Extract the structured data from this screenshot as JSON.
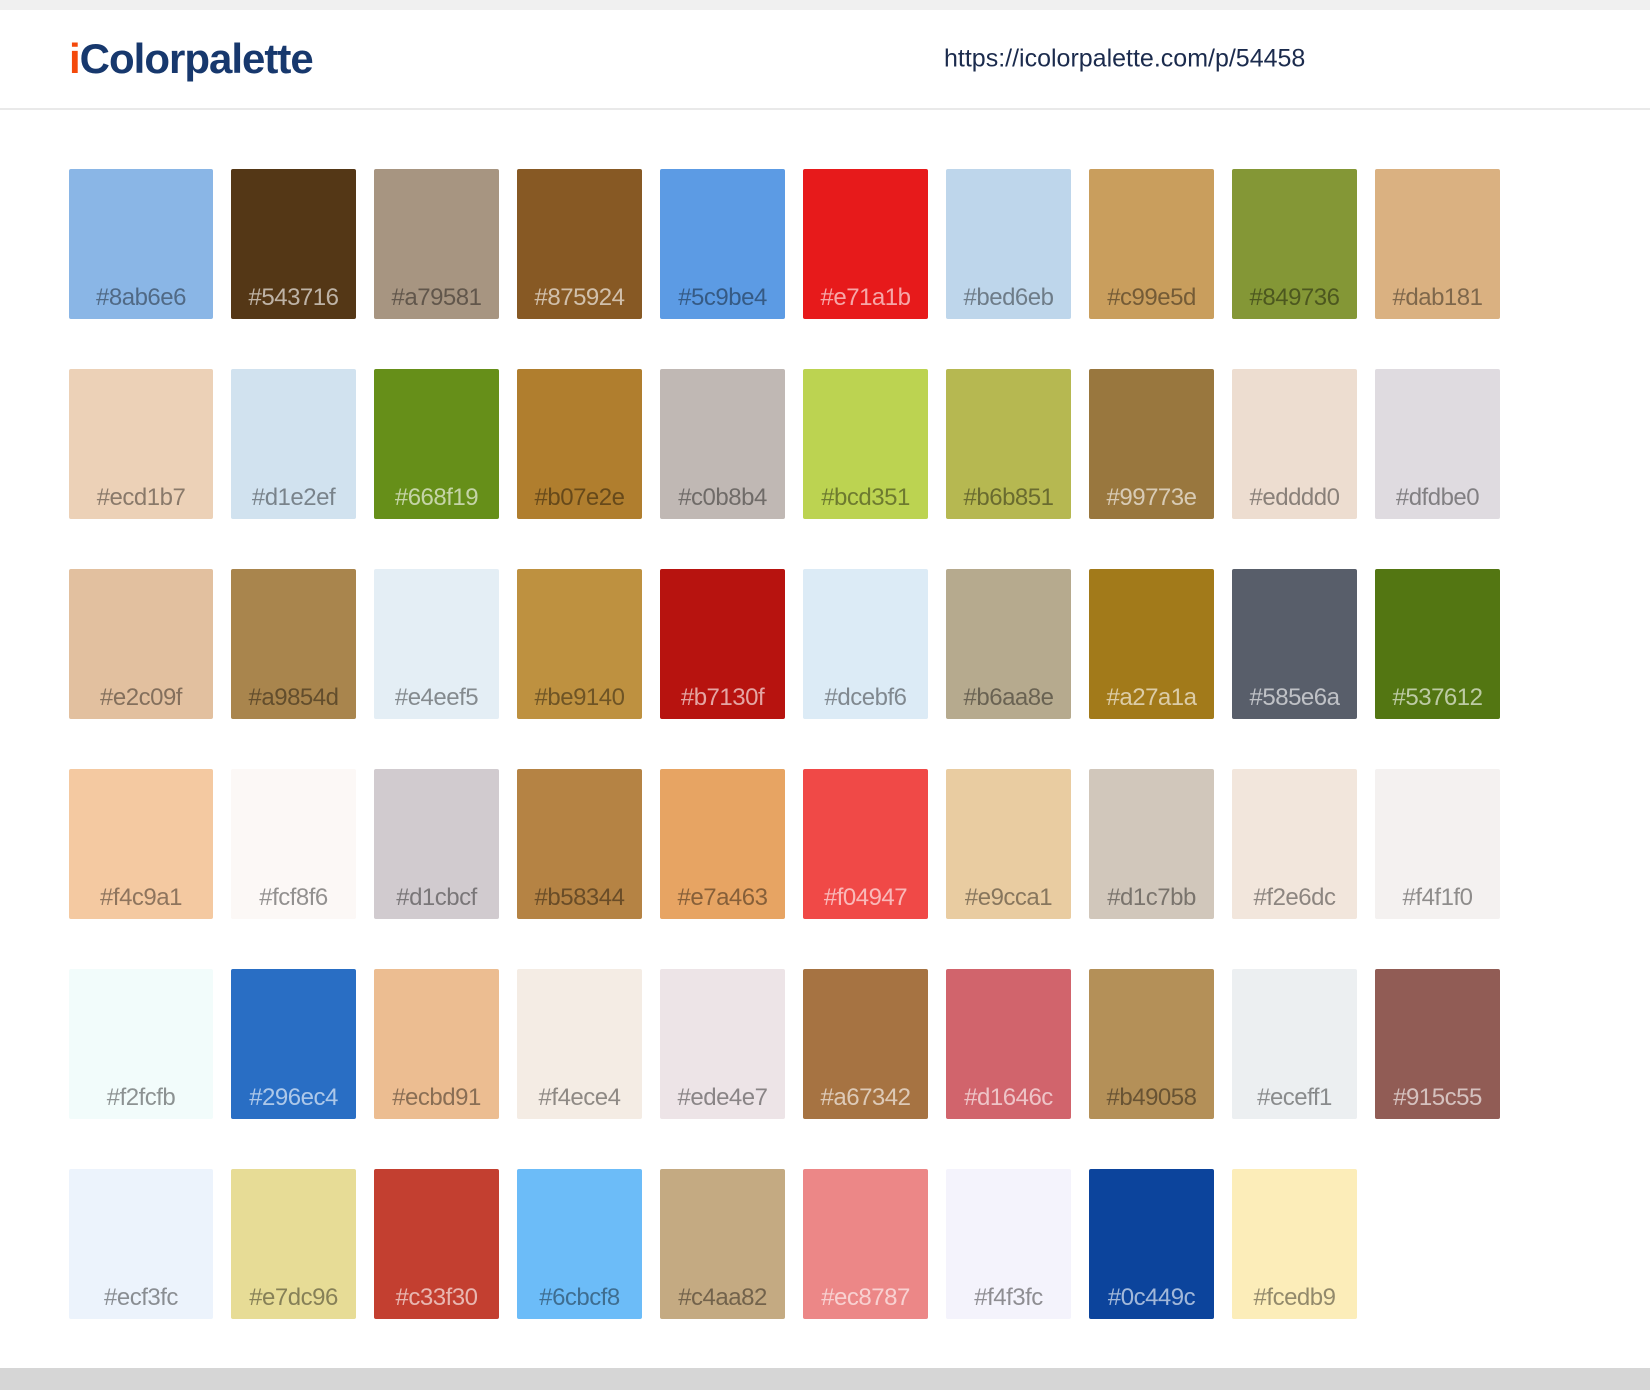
{
  "header": {
    "logo_prefix": "i",
    "logo_rest": "Colorpalette",
    "url": "https://icolorpalette.com/p/54458"
  },
  "colors": {
    "logo_accent": "#f4490b",
    "logo_main": "#17386d",
    "url_text": "#1b2b4d",
    "top_strip": "#f0f0f0",
    "header_border": "#e9e9e9",
    "footer_bar": "#d6d6d6",
    "label_dark": "rgba(0,0,0,0.42)",
    "label_light": "rgba(255,255,255,0.62)"
  },
  "palette": {
    "rows": [
      [
        {
          "hex": "#8ab6e6",
          "text": "dark"
        },
        {
          "hex": "#543716",
          "text": "light"
        },
        {
          "hex": "#a79581",
          "text": "dark"
        },
        {
          "hex": "#875924",
          "text": "light"
        },
        {
          "hex": "#5c9be4",
          "text": "dark"
        },
        {
          "hex": "#e71a1b",
          "text": "light"
        },
        {
          "hex": "#bed6eb",
          "text": "dark"
        },
        {
          "hex": "#c99e5d",
          "text": "dark"
        },
        {
          "hex": "#849736",
          "text": "dark"
        },
        {
          "hex": "#dab181",
          "text": "dark"
        }
      ],
      [
        {
          "hex": "#ecd1b7",
          "text": "dark"
        },
        {
          "hex": "#d1e2ef",
          "text": "dark"
        },
        {
          "hex": "#668f19",
          "text": "light"
        },
        {
          "hex": "#b07e2e",
          "text": "dark"
        },
        {
          "hex": "#c0b8b4",
          "text": "dark"
        },
        {
          "hex": "#bcd351",
          "text": "dark"
        },
        {
          "hex": "#b6b851",
          "text": "dark"
        },
        {
          "hex": "#99773e",
          "text": "light"
        },
        {
          "hex": "#edddd0",
          "text": "dark"
        },
        {
          "hex": "#dfdbe0",
          "text": "dark"
        }
      ],
      [
        {
          "hex": "#e2c09f",
          "text": "dark"
        },
        {
          "hex": "#a9854d",
          "text": "dark"
        },
        {
          "hex": "#e4eef5",
          "text": "dark"
        },
        {
          "hex": "#be9140",
          "text": "dark"
        },
        {
          "hex": "#b7130f",
          "text": "light"
        },
        {
          "hex": "#dcebf6",
          "text": "dark"
        },
        {
          "hex": "#b6aa8e",
          "text": "dark"
        },
        {
          "hex": "#a27a1a",
          "text": "light"
        },
        {
          "hex": "#585e6a",
          "text": "light"
        },
        {
          "hex": "#537612",
          "text": "light"
        }
      ],
      [
        {
          "hex": "#f4c9a1",
          "text": "dark"
        },
        {
          "hex": "#fcf8f6",
          "text": "dark"
        },
        {
          "hex": "#d1cbcf",
          "text": "dark"
        },
        {
          "hex": "#b58344",
          "text": "dark"
        },
        {
          "hex": "#e7a463",
          "text": "dark"
        },
        {
          "hex": "#f04947",
          "text": "light"
        },
        {
          "hex": "#e9cca1",
          "text": "dark"
        },
        {
          "hex": "#d1c7bb",
          "text": "dark"
        },
        {
          "hex": "#f2e6dc",
          "text": "dark"
        },
        {
          "hex": "#f4f1f0",
          "text": "dark"
        }
      ],
      [
        {
          "hex": "#f2fcfb",
          "text": "dark"
        },
        {
          "hex": "#296ec4",
          "text": "light"
        },
        {
          "hex": "#ecbd91",
          "text": "dark"
        },
        {
          "hex": "#f4ece4",
          "text": "dark"
        },
        {
          "hex": "#ede4e7",
          "text": "dark"
        },
        {
          "hex": "#a67342",
          "text": "light"
        },
        {
          "hex": "#d1646c",
          "text": "light"
        },
        {
          "hex": "#b49058",
          "text": "dark"
        },
        {
          "hex": "#eceff1",
          "text": "dark"
        },
        {
          "hex": "#915c55",
          "text": "light"
        }
      ],
      [
        {
          "hex": "#ecf3fc",
          "text": "dark"
        },
        {
          "hex": "#e7dc96",
          "text": "dark"
        },
        {
          "hex": "#c33f30",
          "text": "light"
        },
        {
          "hex": "#6cbcf8",
          "text": "dark"
        },
        {
          "hex": "#c4aa82",
          "text": "dark"
        },
        {
          "hex": "#ec8787",
          "text": "light"
        },
        {
          "hex": "#f4f3fc",
          "text": "dark"
        },
        {
          "hex": "#0c449c",
          "text": "light"
        },
        {
          "hex": "#fcedb9",
          "text": "dark"
        }
      ]
    ]
  }
}
